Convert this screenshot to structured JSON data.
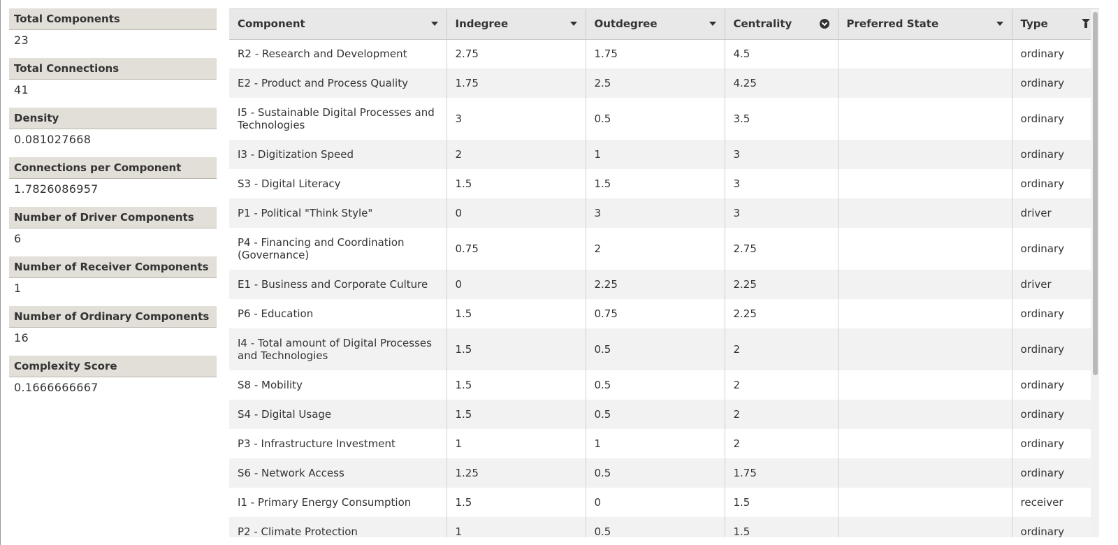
{
  "metrics": [
    {
      "label": "Total Components",
      "value": "23"
    },
    {
      "label": "Total Connections",
      "value": "41"
    },
    {
      "label": "Density",
      "value": "0.081027668"
    },
    {
      "label": "Connections per Component",
      "value": "1.7826086957"
    },
    {
      "label": "Number of Driver Components",
      "value": "6"
    },
    {
      "label": "Number of Receiver Components",
      "value": "1"
    },
    {
      "label": "Number of Ordinary Components",
      "value": "16"
    },
    {
      "label": "Complexity Score",
      "value": "0.1666666667"
    }
  ],
  "table": {
    "columns": [
      "Component",
      "Indegree",
      "Outdegree",
      "Centrality",
      "Preferred State",
      "Type"
    ],
    "sorted_column": "Centrality",
    "filtered_column": "Type",
    "rows": [
      [
        "R2 - Research and Development",
        "2.75",
        "1.75",
        "4.5",
        "",
        "ordinary"
      ],
      [
        "E2 - Product and Process Quality",
        "1.75",
        "2.5",
        "4.25",
        "",
        "ordinary"
      ],
      [
        "I5 - Sustainable Digital Processes and Technologies",
        "3",
        "0.5",
        "3.5",
        "",
        "ordinary"
      ],
      [
        "I3 - Digitization Speed",
        "2",
        "1",
        "3",
        "",
        "ordinary"
      ],
      [
        "S3 - Digital Literacy",
        "1.5",
        "1.5",
        "3",
        "",
        "ordinary"
      ],
      [
        "P1 - Political \"Think Style\"",
        "0",
        "3",
        "3",
        "",
        "driver"
      ],
      [
        "P4 - Financing and Coordination (Governance)",
        "0.75",
        "2",
        "2.75",
        "",
        "ordinary"
      ],
      [
        "E1 - Business and Corporate Culture",
        "0",
        "2.25",
        "2.25",
        "",
        "driver"
      ],
      [
        "P6 - Education",
        "1.5",
        "0.75",
        "2.25",
        "",
        "ordinary"
      ],
      [
        "I4 - Total amount of Digital Processes and Technologies",
        "1.5",
        "0.5",
        "2",
        "",
        "ordinary"
      ],
      [
        "S8 - Mobility",
        "1.5",
        "0.5",
        "2",
        "",
        "ordinary"
      ],
      [
        "S4 - Digital Usage",
        "1.5",
        "0.5",
        "2",
        "",
        "ordinary"
      ],
      [
        "P3 - Infrastructure Investment",
        "1",
        "1",
        "2",
        "",
        "ordinary"
      ],
      [
        "S6 - Network Access",
        "1.25",
        "0.5",
        "1.75",
        "",
        "ordinary"
      ],
      [
        "I1 - Primary Energy Consumption",
        "1.5",
        "0",
        "1.5",
        "",
        "receiver"
      ],
      [
        "P2 - Climate Protection",
        "1",
        "0.5",
        "1.5",
        "",
        "ordinary"
      ]
    ]
  }
}
